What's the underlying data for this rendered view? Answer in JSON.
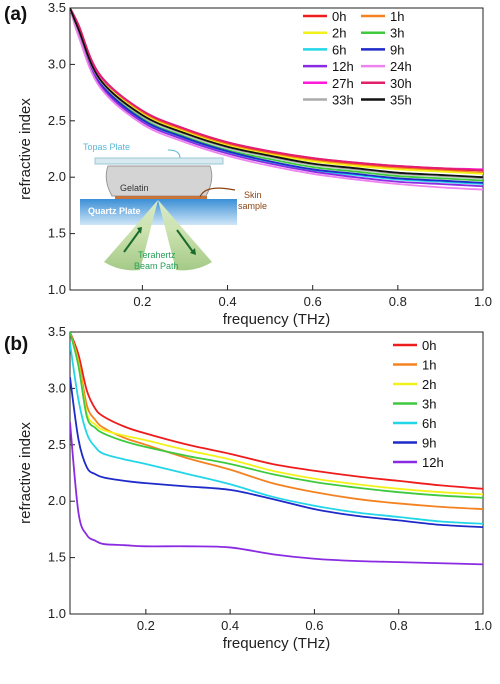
{
  "colors": {
    "0h": "#ee1c1c",
    "1h": "#f58220",
    "2h": "#f2f21a",
    "3h": "#3ec93e",
    "6h": "#22d6e8",
    "9h": "#1e2bc8",
    "12h": "#8a2be2",
    "24h": "#ee82ee",
    "27h": "#ff1ad9",
    "30h": "#e0206a",
    "33h": "#aaaaaa",
    "35h": "#111111"
  },
  "inset": {
    "topas_plate": "Topas Plate",
    "gelatin": "Gelatin",
    "skin_sample": [
      "Skin",
      "sample"
    ],
    "quartz_plate": "Quartz Plate",
    "beam_path": [
      "Terahertz",
      "Beam Path"
    ]
  },
  "chart_data": [
    {
      "panel": "(a)",
      "type": "line",
      "xlabel": "frequency (THz)",
      "ylabel": "refractive index",
      "xlim": [
        0.03,
        1.0
      ],
      "ylim": [
        1.0,
        3.5
      ],
      "xticks": [
        "0.2",
        "0.4",
        "0.6",
        "0.8",
        "1.0"
      ],
      "yticks": [
        "1.0",
        "1.5",
        "2.0",
        "2.5",
        "3.0",
        "3.5"
      ],
      "legend_position": "top-right",
      "legend_columns": 2,
      "x": [
        0.03,
        0.05,
        0.1,
        0.2,
        0.3,
        0.4,
        0.5,
        0.6,
        0.7,
        0.8,
        0.9,
        1.0
      ],
      "series": [
        {
          "name": "0h",
          "values": [
            3.5,
            3.35,
            2.9,
            2.58,
            2.42,
            2.3,
            2.22,
            2.16,
            2.12,
            2.09,
            2.07,
            2.06
          ]
        },
        {
          "name": "1h",
          "values": [
            3.5,
            3.34,
            2.89,
            2.57,
            2.41,
            2.29,
            2.21,
            2.15,
            2.11,
            2.08,
            2.06,
            2.04
          ]
        },
        {
          "name": "2h",
          "values": [
            3.5,
            3.33,
            2.88,
            2.56,
            2.4,
            2.28,
            2.2,
            2.14,
            2.1,
            2.07,
            2.05,
            2.03
          ]
        },
        {
          "name": "3h",
          "values": [
            3.5,
            3.3,
            2.85,
            2.52,
            2.36,
            2.24,
            2.16,
            2.09,
            2.05,
            2.01,
            1.99,
            1.97
          ]
        },
        {
          "name": "6h",
          "values": [
            3.5,
            3.28,
            2.83,
            2.5,
            2.34,
            2.22,
            2.13,
            2.06,
            2.02,
            1.98,
            1.96,
            1.94
          ]
        },
        {
          "name": "9h",
          "values": [
            3.5,
            3.29,
            2.84,
            2.51,
            2.35,
            2.23,
            2.14,
            2.07,
            2.03,
            1.99,
            1.97,
            1.95
          ]
        },
        {
          "name": "12h",
          "values": [
            3.5,
            3.27,
            2.82,
            2.49,
            2.33,
            2.21,
            2.12,
            2.05,
            2.0,
            1.96,
            1.94,
            1.92
          ]
        },
        {
          "name": "24h",
          "values": [
            3.5,
            3.25,
            2.8,
            2.47,
            2.31,
            2.19,
            2.1,
            2.03,
            1.98,
            1.94,
            1.91,
            1.89
          ]
        },
        {
          "name": "27h",
          "values": [
            3.5,
            3.34,
            2.9,
            2.59,
            2.43,
            2.31,
            2.23,
            2.17,
            2.13,
            2.1,
            2.08,
            2.07
          ]
        },
        {
          "name": "30h",
          "values": [
            3.5,
            3.35,
            2.91,
            2.59,
            2.43,
            2.31,
            2.23,
            2.17,
            2.13,
            2.1,
            2.08,
            2.06
          ]
        },
        {
          "name": "33h",
          "values": [
            3.5,
            3.3,
            2.86,
            2.54,
            2.38,
            2.26,
            2.18,
            2.11,
            2.07,
            2.03,
            2.01,
            1.99
          ]
        },
        {
          "name": "35h",
          "values": [
            3.5,
            3.31,
            2.87,
            2.55,
            2.39,
            2.27,
            2.19,
            2.12,
            2.08,
            2.04,
            2.02,
            2.0
          ]
        }
      ]
    },
    {
      "panel": "(b)",
      "type": "line",
      "xlabel": "frequency (THz)",
      "ylabel": "refractive index",
      "xlim": [
        0.02,
        1.0
      ],
      "ylim": [
        1.0,
        3.5
      ],
      "xticks": [
        "0.2",
        "0.4",
        "0.6",
        "0.8",
        "1.0"
      ],
      "yticks": [
        "1.0",
        "1.5",
        "2.0",
        "2.5",
        "3.0",
        "3.5"
      ],
      "legend_position": "top-right",
      "legend_columns": 1,
      "x": [
        0.02,
        0.04,
        0.06,
        0.08,
        0.1,
        0.15,
        0.2,
        0.3,
        0.4,
        0.5,
        0.6,
        0.7,
        0.8,
        0.9,
        1.0
      ],
      "series": [
        {
          "name": "0h",
          "values": [
            3.5,
            3.3,
            2.98,
            2.82,
            2.75,
            2.66,
            2.6,
            2.5,
            2.42,
            2.33,
            2.27,
            2.22,
            2.18,
            2.14,
            2.11
          ]
        },
        {
          "name": "1h",
          "values": [
            3.5,
            3.25,
            2.85,
            2.72,
            2.65,
            2.56,
            2.5,
            2.38,
            2.28,
            2.16,
            2.08,
            2.02,
            1.98,
            1.95,
            1.93
          ]
        },
        {
          "name": "2h",
          "values": [
            3.5,
            3.22,
            2.78,
            2.68,
            2.63,
            2.58,
            2.54,
            2.45,
            2.37,
            2.27,
            2.2,
            2.15,
            2.11,
            2.08,
            2.06
          ]
        },
        {
          "name": "3h",
          "values": [
            3.5,
            3.2,
            2.75,
            2.65,
            2.6,
            2.53,
            2.48,
            2.4,
            2.33,
            2.24,
            2.17,
            2.12,
            2.08,
            2.05,
            2.03
          ]
        },
        {
          "name": "6h",
          "values": [
            3.4,
            2.9,
            2.6,
            2.48,
            2.42,
            2.37,
            2.33,
            2.24,
            2.15,
            2.04,
            1.96,
            1.9,
            1.86,
            1.82,
            1.8
          ]
        },
        {
          "name": "9h",
          "values": [
            3.1,
            2.55,
            2.3,
            2.24,
            2.21,
            2.18,
            2.16,
            2.13,
            2.1,
            2.02,
            1.93,
            1.87,
            1.83,
            1.79,
            1.77
          ]
        },
        {
          "name": "12h",
          "values": [
            2.7,
            1.9,
            1.7,
            1.65,
            1.62,
            1.61,
            1.6,
            1.6,
            1.59,
            1.53,
            1.49,
            1.47,
            1.46,
            1.45,
            1.44
          ]
        }
      ]
    }
  ]
}
